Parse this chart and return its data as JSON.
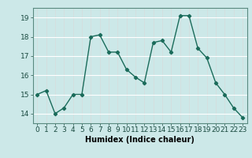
{
  "x": [
    0,
    1,
    2,
    3,
    4,
    5,
    6,
    7,
    8,
    9,
    10,
    11,
    12,
    13,
    14,
    15,
    16,
    17,
    18,
    19,
    20,
    21,
    22,
    23
  ],
  "y": [
    15.0,
    15.2,
    14.0,
    14.3,
    15.0,
    15.0,
    18.0,
    18.1,
    17.2,
    17.2,
    16.3,
    15.9,
    15.6,
    17.7,
    17.8,
    17.2,
    19.1,
    19.1,
    17.4,
    16.9,
    15.6,
    15.0,
    14.3,
    13.8
  ],
  "line_color": "#1a6b5a",
  "marker": "D",
  "marker_size": 2.2,
  "line_width": 1.0,
  "bg_color": "#cce8e8",
  "grid_color": "#ffffff",
  "xlabel": "Humidex (Indice chaleur)",
  "xlabel_fontsize": 7,
  "tick_fontsize": 6.5,
  "ylim_min": 13.5,
  "ylim_max": 19.5,
  "xlim_min": -0.5,
  "xlim_max": 23.5,
  "yticks": [
    14,
    15,
    16,
    17,
    18,
    19
  ],
  "xticks": [
    0,
    1,
    2,
    3,
    4,
    5,
    6,
    7,
    8,
    9,
    10,
    11,
    12,
    13,
    14,
    15,
    16,
    17,
    18,
    19,
    20,
    21,
    22,
    23
  ]
}
